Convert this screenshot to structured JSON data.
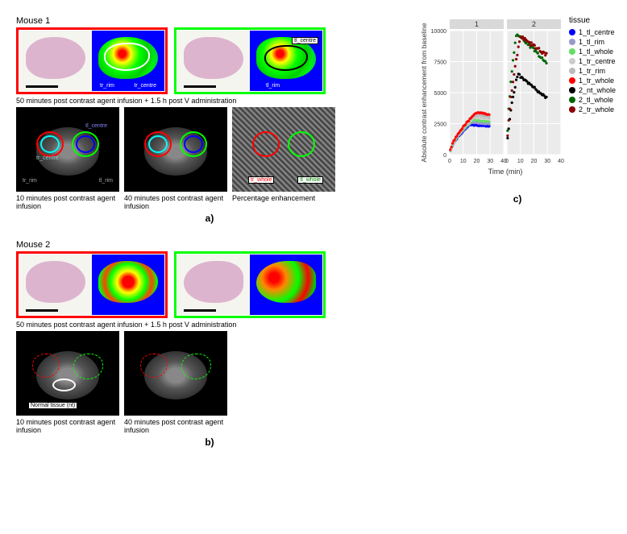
{
  "mouse1": {
    "label": "Mouse 1",
    "histology_caption": "50 minutes post contrast agent infusion + 1.5 h post V administration",
    "tl_centre_label": "tl_centre",
    "tr_rim_label": "tr_rim",
    "tr_centre_label": "tr_centre",
    "tl_rim_label": "tl_rim",
    "tr_whole_label": "tr_whole",
    "tl_whole_label": "tl_whole",
    "mri_captions": [
      "10 minutes post contrast agent infusion",
      "40 minutes post contrast agent infusion",
      "Percentage enhancement"
    ]
  },
  "mouse2": {
    "label": "Mouse 2",
    "histology_caption": "50 minutes post contrast agent infusion + 1.5 h post V administration",
    "normal_tissue_label": "Normal tissue (nt)",
    "mri_captions": [
      "10 minutes post contrast agent infusion",
      "40 minutes post contrast agent infusion"
    ]
  },
  "panel_labels": {
    "a": "a)",
    "b": "b)",
    "c": "c)"
  },
  "chart": {
    "type": "scatter",
    "facets": [
      "1",
      "2"
    ],
    "xlabel": "Time (min)",
    "ylabel": "Absolute contrast enhancement from baseline",
    "xlim": [
      0,
      40
    ],
    "ylim": [
      0,
      10000
    ],
    "xticks": [
      0,
      10,
      20,
      30,
      40
    ],
    "yticks": [
      0,
      2500,
      5000,
      7500,
      10000
    ],
    "background_color": "#ebebeb",
    "grid_color": "#ffffff",
    "facet_strip_color": "#d9d9d9",
    "legend_title": "tissue",
    "series": [
      {
        "name": "1_tl_centre",
        "color": "#0000ff",
        "facet": 0
      },
      {
        "name": "1_tl_rim",
        "color": "#9999cc",
        "facet": 0
      },
      {
        "name": "1_tl_whole",
        "color": "#66dd66",
        "facet": 0
      },
      {
        "name": "1_tr_centre",
        "color": "#cccccc",
        "facet": 0
      },
      {
        "name": "1_tr_rim",
        "color": "#bbbbbb",
        "facet": 0
      },
      {
        "name": "1_tr_whole",
        "color": "#ff0000",
        "facet": 0
      },
      {
        "name": "2_nt_whole",
        "color": "#000000",
        "facet": 1
      },
      {
        "name": "2_tl_whole",
        "color": "#006600",
        "facet": 1
      },
      {
        "name": "2_tr_whole",
        "color": "#8b0000",
        "facet": 1
      }
    ],
    "facet1_yrange": [
      0,
      3500
    ],
    "facet2_curves": {
      "2_tr_whole": {
        "peak": 9500,
        "peak_time": 10,
        "end": 8000
      },
      "2_tl_whole": {
        "peak": 9800,
        "peak_time": 7,
        "end": 7400
      },
      "2_nt_whole": {
        "peak": 6500,
        "peak_time": 8,
        "end": 4500
      }
    }
  }
}
